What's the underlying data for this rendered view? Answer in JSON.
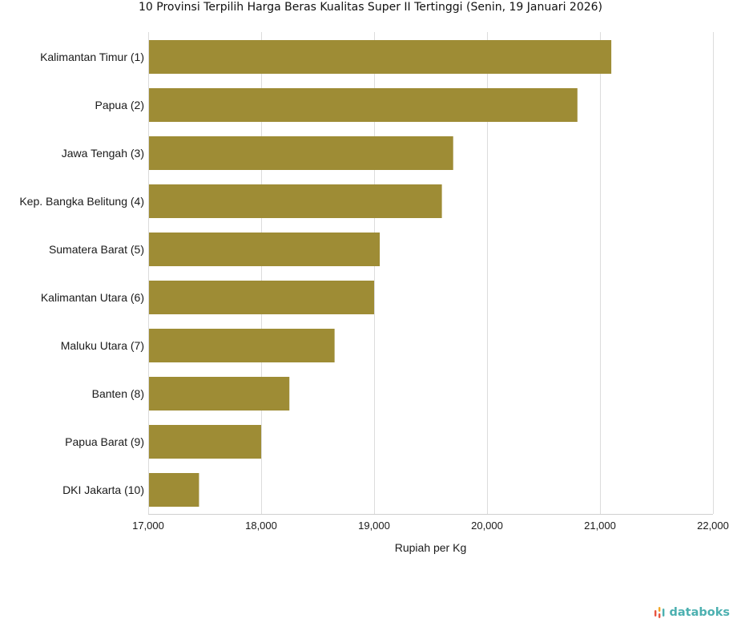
{
  "brand": {
    "name": "databoks",
    "accent_color": "#4cb0b0",
    "logo_colors": [
      "#e8543f",
      "#f5a623",
      "#4cb0b0"
    ]
  },
  "chart_data": {
    "type": "bar",
    "orientation": "horizontal",
    "title": "10 Provinsi Terpilih Harga Beras Kualitas Super II Tertinggi (Senin, 19 Januari 2026)",
    "xlabel": "Rupiah per Kg",
    "ylabel": "",
    "xlim": [
      17000,
      22000
    ],
    "xticks": [
      17000,
      18000,
      19000,
      20000,
      21000,
      22000
    ],
    "xtick_labels": [
      "17,000",
      "18,000",
      "19,000",
      "20,000",
      "21,000",
      "22,000"
    ],
    "grid": true,
    "bar_color": "#9e8c35",
    "categories": [
      "Kalimantan Timur (1)",
      "Papua (2)",
      "Jawa Tengah (3)",
      "Kep. Bangka Belitung (4)",
      "Sumatera Barat (5)",
      "Kalimantan Utara (6)",
      "Maluku Utara (7)",
      "Banten (8)",
      "Papua Barat (9)",
      "DKI Jakarta (10)"
    ],
    "values": [
      21100,
      20800,
      19700,
      19600,
      19050,
      19000,
      18650,
      18250,
      18000,
      17450
    ]
  }
}
